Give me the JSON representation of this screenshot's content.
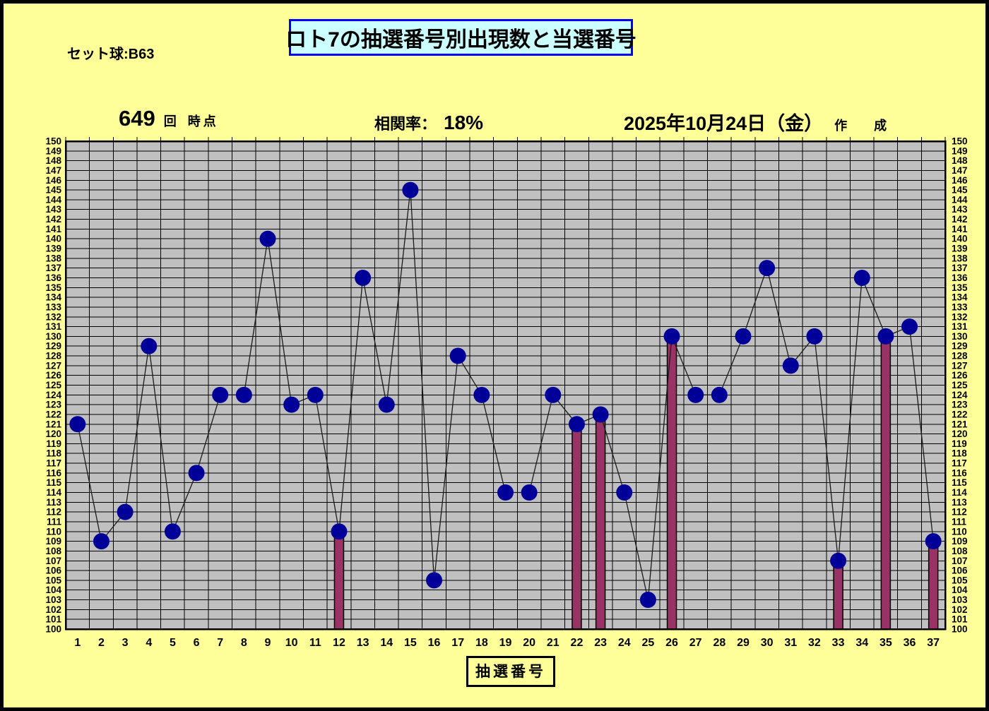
{
  "header": {
    "set_ball": "セット球:B63",
    "title": "ロト7の抽選番号別出現数と当選番号",
    "draw_number": "649",
    "draw_unit": "回",
    "draw_suffix": "時点",
    "correlation_label": "相関率：",
    "correlation_value": "18%",
    "created_date": "2025年10月24日（金）",
    "created_suffix": "作　成"
  },
  "footer": {
    "xaxis_box_label": "抽選番号"
  },
  "colors": {
    "page_bg": "#FFFF99",
    "title_box_bg": "#CCFFFF",
    "title_box_border": "#0000FF",
    "plot_bg": "#C0C0C0",
    "grid_line": "#000000",
    "plot_border": "#000000",
    "series_line": "#1a1a1a",
    "dot_fill": "#000099",
    "bar_fill": "#993366",
    "bar_stroke": "#000000",
    "text": "#000000"
  },
  "chart_data": {
    "type": "line",
    "title": "ロト7の抽選番号別出現数と当選番号",
    "xlabel": "抽選番号",
    "ylabel": "",
    "x": [
      1,
      2,
      3,
      4,
      5,
      6,
      7,
      8,
      9,
      10,
      11,
      12,
      13,
      14,
      15,
      16,
      17,
      18,
      19,
      20,
      21,
      22,
      23,
      24,
      25,
      26,
      27,
      28,
      29,
      30,
      31,
      32,
      33,
      34,
      35,
      36,
      37
    ],
    "values": [
      121,
      109,
      112,
      129,
      110,
      116,
      124,
      124,
      140,
      123,
      124,
      110,
      136,
      123,
      145,
      105,
      128,
      124,
      114,
      114,
      124,
      121,
      122,
      114,
      103,
      130,
      124,
      124,
      130,
      137,
      127,
      130,
      107,
      136,
      130,
      131,
      109
    ],
    "winning_numbers": [
      12,
      22,
      23,
      26,
      33,
      35,
      37
    ],
    "winning_bar_note": "maroon bars drawn from y=100 up to the value at each winning number",
    "ylim": [
      100,
      150
    ],
    "ytick_step": 1,
    "grid": "on",
    "legend": "none",
    "dual_y_axis_labels": true
  }
}
